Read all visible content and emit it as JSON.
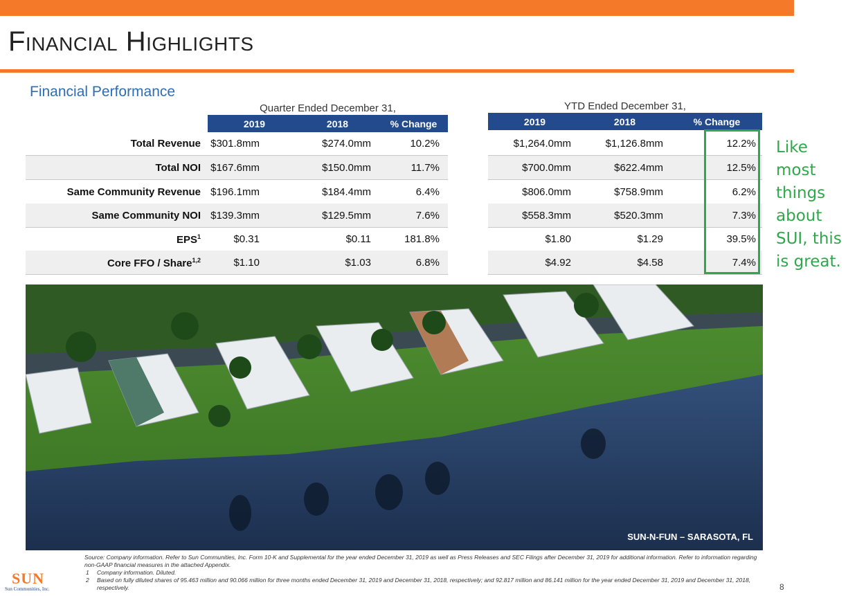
{
  "slide": {
    "title": "Financial Highlights",
    "subtitle": "Financial Performance",
    "page_number": "8"
  },
  "quarter": {
    "group_label": "Quarter Ended December 31,",
    "headers": [
      "2019",
      "2018",
      "% Change"
    ]
  },
  "ytd": {
    "group_label": "YTD Ended December 31,",
    "headers": [
      "2019",
      "2018",
      "% Change"
    ]
  },
  "rows": [
    {
      "label": "Total Revenue",
      "sup": "",
      "q2019": "$301.8mm",
      "q2018": "$274.0mm",
      "qchg": "10.2%",
      "y2019": "$1,264.0mm",
      "y2018": "$1,126.8mm",
      "ychg": "12.2%"
    },
    {
      "label": "Total NOI",
      "sup": "",
      "q2019": "$167.6mm",
      "q2018": "$150.0mm",
      "qchg": "11.7%",
      "y2019": "$700.0mm",
      "y2018": "$622.4mm",
      "ychg": "12.5%"
    },
    {
      "label": "Same Community Revenue",
      "sup": "",
      "q2019": "$196.1mm",
      "q2018": "$184.4mm",
      "qchg": "6.4%",
      "y2019": "$806.0mm",
      "y2018": "$758.9mm",
      "ychg": "6.2%"
    },
    {
      "label": "Same Community NOI",
      "sup": "",
      "q2019": "$139.3mm",
      "q2018": "$129.5mm",
      "qchg": "7.6%",
      "y2019": "$558.3mm",
      "y2018": "$520.3mm",
      "ychg": "7.3%"
    },
    {
      "label": "EPS",
      "sup": "1",
      "q2019": "$0.31",
      "q2018": "$0.11",
      "qchg": "181.8%",
      "y2019": "$1.80",
      "y2018": "$1.29",
      "ychg": "39.5%"
    },
    {
      "label": "Core FFO / Share",
      "sup": "1,2",
      "q2019": "$1.10",
      "q2018": "$1.03",
      "qchg": "6.8%",
      "y2019": "$4.92",
      "y2018": "$4.58",
      "ychg": "7.4%"
    }
  ],
  "annotation": {
    "text": "Like most things about SUI, this is great.",
    "color": "#2ea84a"
  },
  "photo": {
    "caption": "SUN-N-FUN – SARASOTA, FL"
  },
  "footnotes": {
    "source": "Source: Company information. Refer to Sun Communities, Inc. Form 10-K and Supplemental for the year ended December 31, 2019 as well as Press Releases and SEC Filings after December 31, 2019 for additional information. Refer to information regarding non-GAAP financial measures in the attached Appendix.",
    "items": [
      {
        "num": "1",
        "text": "Company information. Diluted."
      },
      {
        "num": "2",
        "text": "Based on fully diluted shares of 95.463 million and 90.066 million for three months ended December 31, 2019 and December 31, 2018, respectively; and 92.817 million and 86.141 million for the year ended December 31, 2019 and December 31, 2018, respectively."
      }
    ]
  },
  "logo": {
    "mark": "SUN",
    "sub": "Sun Communities, Inc."
  },
  "colors": {
    "accent_orange": "#f47a2a",
    "header_navy": "#234a8c",
    "subtitle_blue": "#2f6db2",
    "highlight_green": "#2ea84a"
  }
}
